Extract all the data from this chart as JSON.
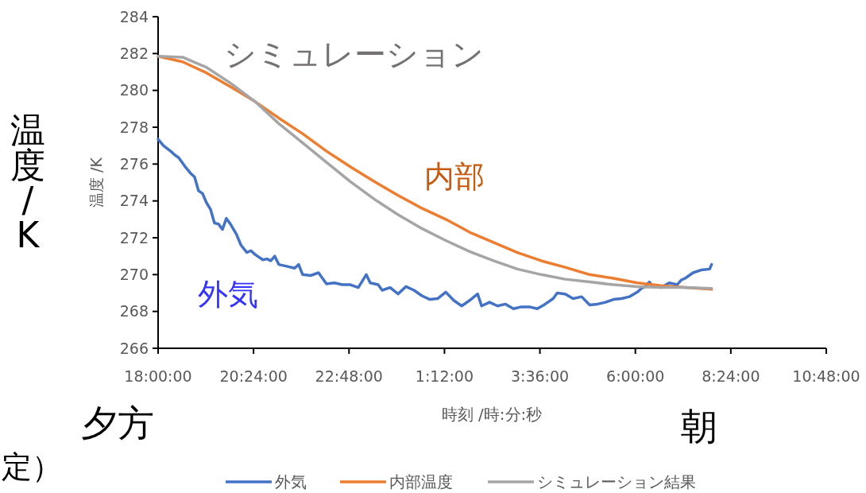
{
  "chart_data": {
    "type": "line",
    "xlabel": "時刻 /時:分:秒",
    "ylabel": "温度 /K",
    "annotations": [
      "シミュレーション",
      "内部",
      "外気",
      "夕方",
      "朝",
      "温度/K",
      "定）"
    ],
    "xlim": [
      "2000-01-01T18:00",
      "2000-01-02T10:48"
    ],
    "xticks": [
      {
        "value": "2000-01-01T18:00",
        "label": "18:00:00"
      },
      {
        "value": "2000-01-01T20:24",
        "label": "20:24:00"
      },
      {
        "value": "2000-01-01T22:48",
        "label": "22:48:00"
      },
      {
        "value": "2000-01-02T01:12",
        "label": "1:12:00"
      },
      {
        "value": "2000-01-02T03:36",
        "label": "3:36:00"
      },
      {
        "value": "2000-01-02T06:00",
        "label": "6:00:00"
      },
      {
        "value": "2000-01-02T08:24",
        "label": "8:24:00"
      },
      {
        "value": "2000-01-02T10:48",
        "label": "10:48:00"
      }
    ],
    "ylim": [
      266,
      284
    ],
    "yticks": [
      266,
      268,
      270,
      272,
      274,
      276,
      278,
      280,
      282,
      284
    ],
    "grid": false,
    "legend": "bottom",
    "marker": "none",
    "line_style": "solid",
    "series": [
      {
        "name": "外気",
        "color": "#4472c4",
        "x": [
          "2000-01-01T18:00",
          "2000-01-01T18:08",
          "2000-01-01T18:19",
          "2000-01-01T18:25",
          "2000-01-01T18:31",
          "2000-01-01T18:41",
          "2000-01-01T18:49",
          "2000-01-01T18:55",
          "2000-01-01T19:01",
          "2000-01-01T19:07",
          "2000-01-01T19:13",
          "2000-01-01T19:19",
          "2000-01-01T19:25",
          "2000-01-01T19:31",
          "2000-01-01T19:37",
          "2000-01-01T19:43",
          "2000-01-01T19:49",
          "2000-01-01T19:58",
          "2000-01-01T20:05",
          "2000-01-01T20:14",
          "2000-01-01T20:20",
          "2000-01-01T20:26",
          "2000-01-01T20:38",
          "2000-01-01T20:44",
          "2000-01-01T20:50",
          "2000-01-01T20:56",
          "2000-01-01T21:02",
          "2000-01-01T21:14",
          "2000-01-01T21:26",
          "2000-01-01T21:32",
          "2000-01-01T21:38",
          "2000-01-01T21:50",
          "2000-01-01T22:02",
          "2000-01-01T22:14",
          "2000-01-01T22:26",
          "2000-01-01T22:38",
          "2000-01-01T22:50",
          "2000-01-01T23:02",
          "2000-01-01T23:14",
          "2000-01-01T23:20",
          "2000-01-01T23:32",
          "2000-01-01T23:38",
          "2000-01-01T23:50",
          "2000-01-02T00:02",
          "2000-01-02T00:14",
          "2000-01-02T00:26",
          "2000-01-02T00:38",
          "2000-01-02T00:50",
          "2000-01-02T01:02",
          "2000-01-02T01:14",
          "2000-01-02T01:26",
          "2000-01-02T01:38",
          "2000-01-02T01:50",
          "2000-01-02T02:02",
          "2000-01-02T02:08",
          "2000-01-02T02:20",
          "2000-01-02T02:32",
          "2000-01-02T02:44",
          "2000-01-02T02:56",
          "2000-01-02T03:08",
          "2000-01-02T03:20",
          "2000-01-02T03:32",
          "2000-01-02T03:44",
          "2000-01-02T03:56",
          "2000-01-02T04:02",
          "2000-01-02T04:14",
          "2000-01-02T04:26",
          "2000-01-02T04:39",
          "2000-01-02T04:51",
          "2000-01-02T05:03",
          "2000-01-02T05:15",
          "2000-01-02T05:27",
          "2000-01-02T05:39",
          "2000-01-02T05:51",
          "2000-01-02T06:03",
          "2000-01-02T06:09",
          "2000-01-02T06:15",
          "2000-01-02T06:21",
          "2000-01-02T06:27",
          "2000-01-02T06:39",
          "2000-01-02T06:51",
          "2000-01-02T07:03",
          "2000-01-02T07:09",
          "2000-01-02T07:15",
          "2000-01-02T07:27",
          "2000-01-02T07:39",
          "2000-01-02T07:52",
          "2000-01-02T07:55"
        ],
        "values": [
          277.35,
          277.0,
          276.7,
          276.5,
          276.35,
          275.85,
          275.5,
          275.3,
          274.55,
          274.4,
          273.9,
          273.55,
          272.8,
          272.75,
          272.45,
          273.05,
          272.75,
          272.2,
          271.6,
          271.2,
          271.3,
          271.1,
          270.8,
          270.85,
          270.75,
          271.0,
          270.55,
          270.45,
          270.35,
          270.55,
          270.0,
          269.95,
          270.1,
          269.5,
          269.55,
          269.45,
          269.45,
          269.3,
          270.0,
          269.55,
          269.45,
          269.15,
          269.3,
          268.95,
          269.35,
          269.15,
          268.85,
          268.65,
          268.7,
          269.05,
          268.6,
          268.3,
          268.6,
          268.95,
          268.3,
          268.5,
          268.3,
          268.4,
          268.15,
          268.25,
          268.25,
          268.15,
          268.4,
          268.7,
          269.0,
          268.95,
          268.7,
          268.8,
          268.35,
          268.4,
          268.5,
          268.65,
          268.7,
          268.8,
          269.05,
          269.25,
          269.35,
          269.6,
          269.35,
          269.3,
          269.55,
          269.45,
          269.7,
          269.8,
          270.1,
          270.25,
          270.3,
          270.55
        ]
      },
      {
        "name": "内部温度",
        "color": "#ed7d31",
        "x": [
          "2000-01-01T18:00",
          "2000-01-01T18:37",
          "2000-01-01T19:13",
          "2000-01-01T19:49",
          "2000-01-01T20:26",
          "2000-01-01T21:02",
          "2000-01-01T21:38",
          "2000-01-01T22:14",
          "2000-01-01T22:50",
          "2000-01-01T23:26",
          "2000-01-02T00:02",
          "2000-01-02T00:38",
          "2000-01-02T01:14",
          "2000-01-02T01:50",
          "2000-01-02T02:26",
          "2000-01-02T03:02",
          "2000-01-02T03:38",
          "2000-01-02T04:14",
          "2000-01-02T04:51",
          "2000-01-02T05:27",
          "2000-01-02T06:03",
          "2000-01-02T06:39",
          "2000-01-02T07:15",
          "2000-01-02T07:55"
        ],
        "values": [
          281.85,
          281.55,
          280.95,
          280.2,
          279.4,
          278.5,
          277.65,
          276.7,
          275.85,
          275.05,
          274.3,
          273.6,
          273.0,
          272.3,
          271.75,
          271.2,
          270.75,
          270.4,
          270.0,
          269.8,
          269.55,
          269.4,
          269.3,
          269.2
        ]
      },
      {
        "name": "シミュレーション結果",
        "color": "#a5a5a5",
        "x": [
          "2000-01-01T18:00",
          "2000-01-01T18:37",
          "2000-01-01T19:13",
          "2000-01-01T19:49",
          "2000-01-01T20:26",
          "2000-01-01T21:02",
          "2000-01-01T21:38",
          "2000-01-01T22:14",
          "2000-01-01T22:50",
          "2000-01-01T23:26",
          "2000-01-02T00:02",
          "2000-01-02T00:38",
          "2000-01-02T01:14",
          "2000-01-02T01:50",
          "2000-01-02T02:26",
          "2000-01-02T03:02",
          "2000-01-02T03:38",
          "2000-01-02T04:14",
          "2000-01-02T04:51",
          "2000-01-02T05:27",
          "2000-01-02T06:03",
          "2000-01-02T06:39",
          "2000-01-02T07:15",
          "2000-01-02T07:55"
        ],
        "values": [
          281.85,
          281.8,
          281.25,
          280.4,
          279.4,
          278.2,
          277.15,
          276.1,
          275.05,
          274.1,
          273.25,
          272.5,
          271.85,
          271.25,
          270.75,
          270.3,
          270.0,
          269.75,
          269.6,
          269.45,
          269.35,
          269.3,
          269.3,
          269.25
        ]
      }
    ]
  }
}
